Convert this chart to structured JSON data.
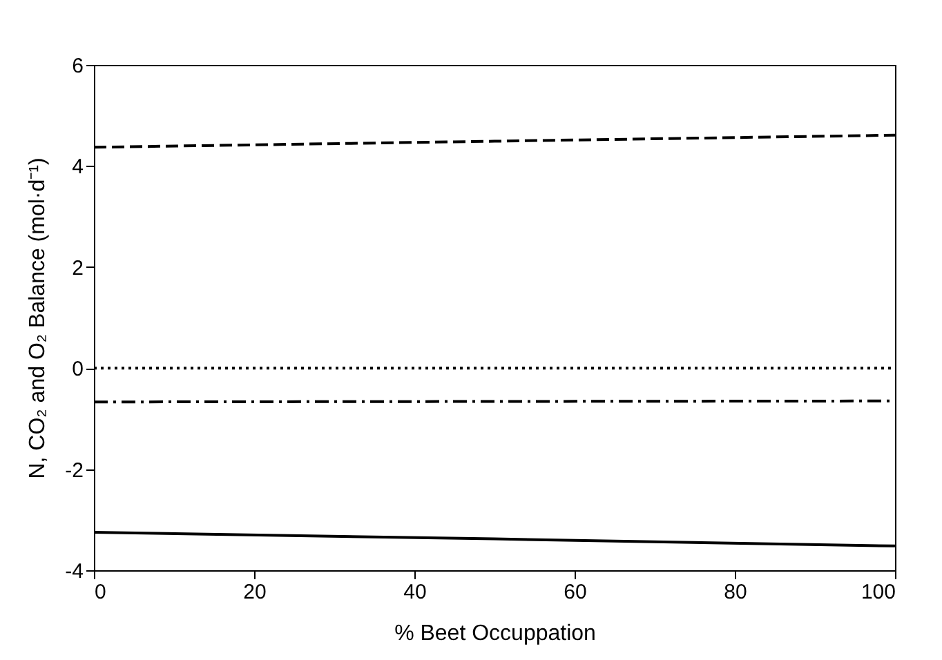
{
  "chart_data": {
    "type": "line",
    "xlabel": "% Beet Occuppation",
    "ylabel": "N, CO₂ and O₂ Balance (mol·d⁻¹)",
    "xlim": [
      0,
      100
    ],
    "xticks": [
      0,
      20,
      40,
      60,
      80,
      100
    ],
    "ylim": [
      -4,
      6
    ],
    "yticks": [
      -4,
      -2,
      0,
      2,
      4,
      6
    ],
    "marker": "none",
    "series": [
      {
        "color": "#000000",
        "line_style": "dashed",
        "x": [
          0,
          50,
          100
        ],
        "values": [
          4.37,
          4.49,
          4.61
        ]
      },
      {
        "color": "#000000",
        "line_style": "dotted",
        "x": [
          0,
          50,
          100
        ],
        "values": [
          0,
          0,
          0
        ]
      },
      {
        "color": "#000000",
        "line_style": "dashdot",
        "x": [
          0,
          50,
          100
        ],
        "values": [
          -0.67,
          -0.66,
          -0.65
        ]
      },
      {
        "color": "#000000",
        "line_style": "solid",
        "x": [
          0,
          50,
          100
        ],
        "values": [
          -3.25,
          -3.38,
          -3.52
        ]
      }
    ]
  }
}
